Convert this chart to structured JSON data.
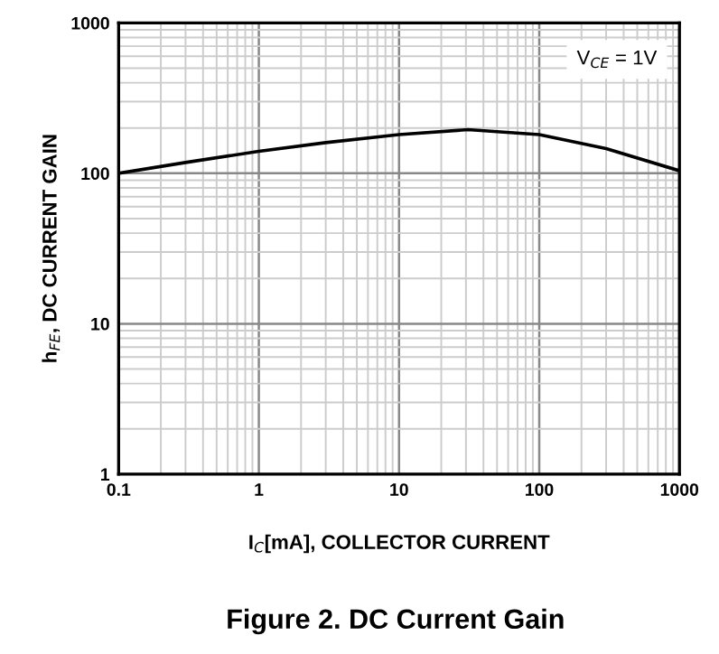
{
  "chart_data": {
    "type": "line",
    "title": "Figure 2. DC Current Gain",
    "xlabel": "I$_{C}$[mA], COLLECTOR CURRENT",
    "ylabel": "h$_{FE}$, DC CURRENT GAIN",
    "annotations": [
      "V$_{CE}$ = 1V"
    ],
    "x": [
      0.1,
      0.3,
      1,
      3,
      10,
      31,
      100,
      300,
      1000
    ],
    "series": [
      {
        "color": "#000000",
        "values": [
          100,
          118,
          140,
          160,
          181,
          195,
          181,
          146,
          104
        ]
      }
    ],
    "xlim": [
      0.1,
      1000
    ],
    "ylim": [
      1,
      1000
    ],
    "xticks": [
      0.1,
      1,
      10,
      100,
      1000
    ],
    "yticks": [
      1,
      10,
      100,
      1000
    ],
    "log": "xy",
    "grid": true
  }
}
